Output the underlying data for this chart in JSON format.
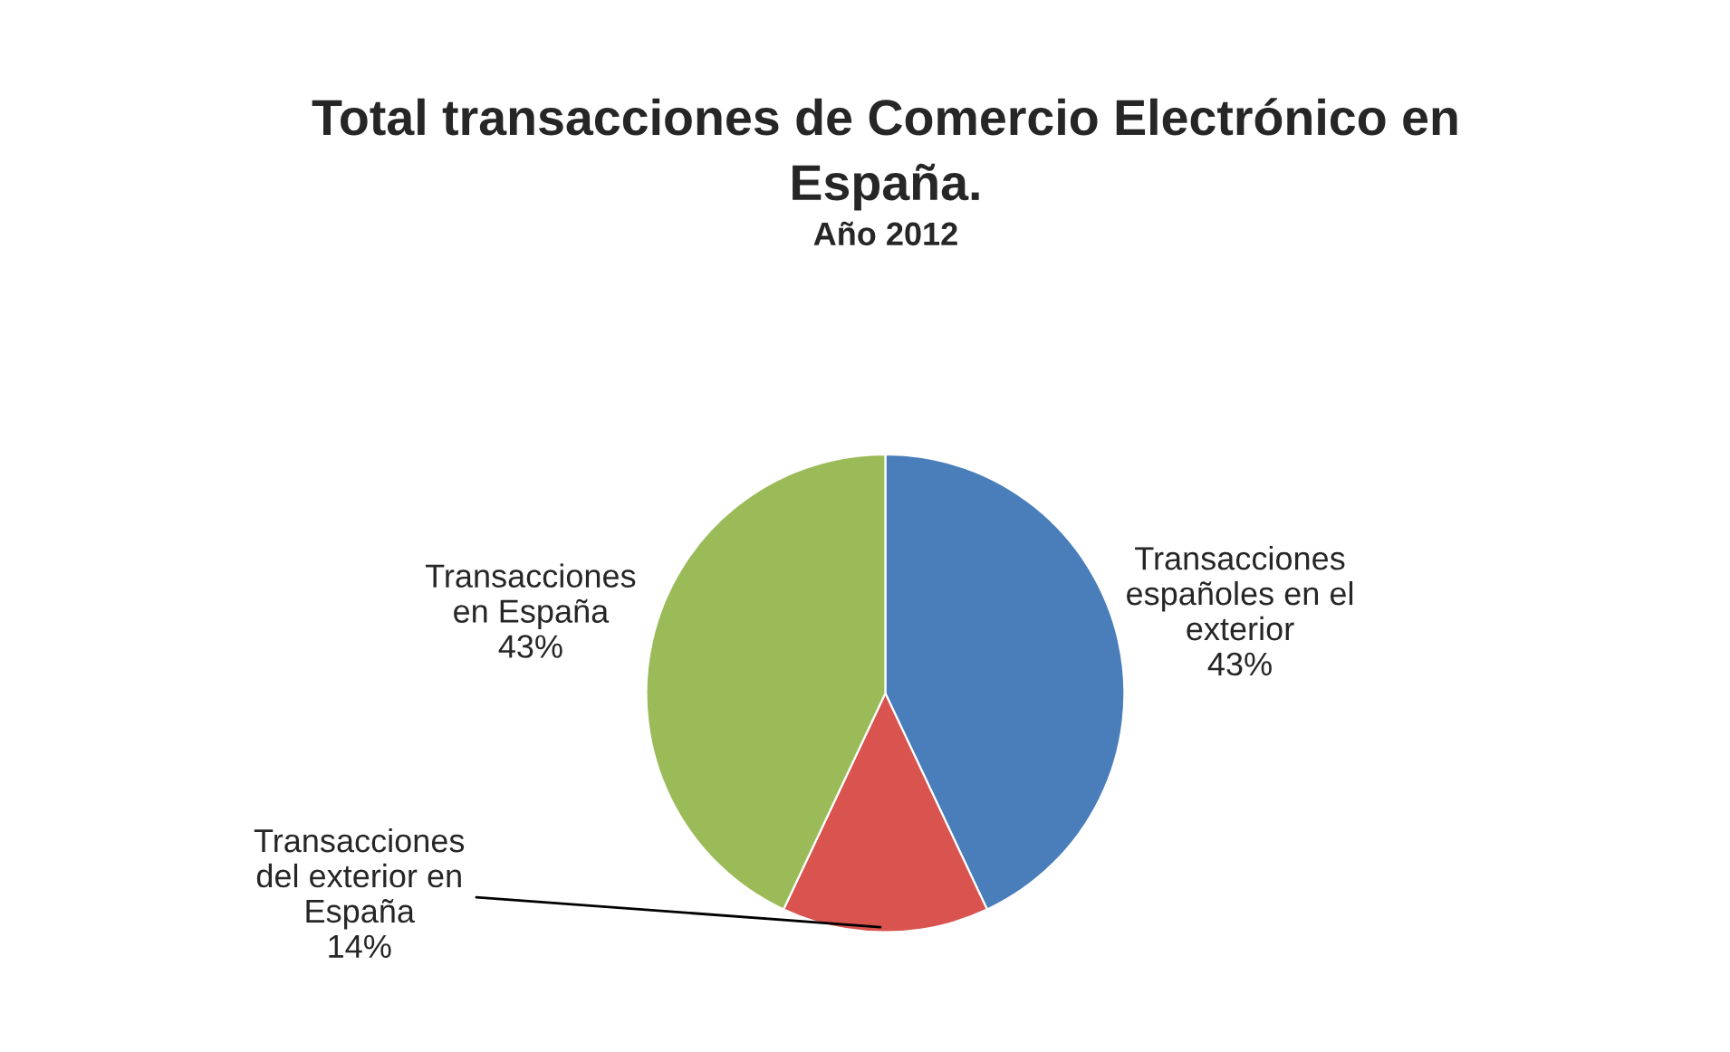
{
  "chart_data": {
    "type": "pie",
    "title": "Total transacciones de Comercio Electrónico en\nEspaña.",
    "subtitle": "Año 2012",
    "categories": [
      "Transacciones\nespañoles en el\nexterior",
      "Transacciones\ndel exterior en\nEspaña",
      "Transacciones\nen España"
    ],
    "values": [
      43,
      14,
      43
    ],
    "colors": [
      "#4a7ebb",
      "#d9534f",
      "#9bbb59"
    ],
    "value_labels": [
      "43%",
      "14%",
      "43%"
    ]
  }
}
